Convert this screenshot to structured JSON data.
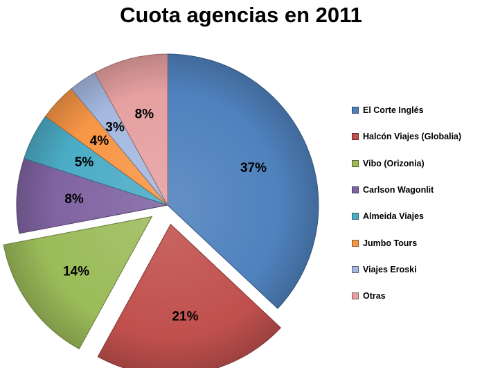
{
  "chart_data": {
    "type": "pie",
    "title": "Cuota agencias en 2011",
    "legend_position": "right",
    "categories": [
      "El Corte Inglés",
      "Halcón Viajes (Globalia)",
      "Vibo (Orizonia)",
      "Carlson Wagonlit",
      "Almeida Viajes",
      "Jumbo Tours",
      "Viajes Eroski",
      "Otras"
    ],
    "values": [
      37,
      21,
      14,
      8,
      5,
      4,
      3,
      8
    ],
    "value_labels": [
      "37%",
      "21%",
      "14%",
      "8%",
      "5%",
      "4%",
      "3%",
      "8%"
    ],
    "exploded": [
      false,
      true,
      true,
      false,
      false,
      false,
      false,
      false
    ],
    "colors": [
      "#4f81bd",
      "#c0504d",
      "#9bbb59",
      "#8064a2",
      "#4bacc6",
      "#f79646",
      "#a5b9e0",
      "#e6a0a0"
    ]
  }
}
